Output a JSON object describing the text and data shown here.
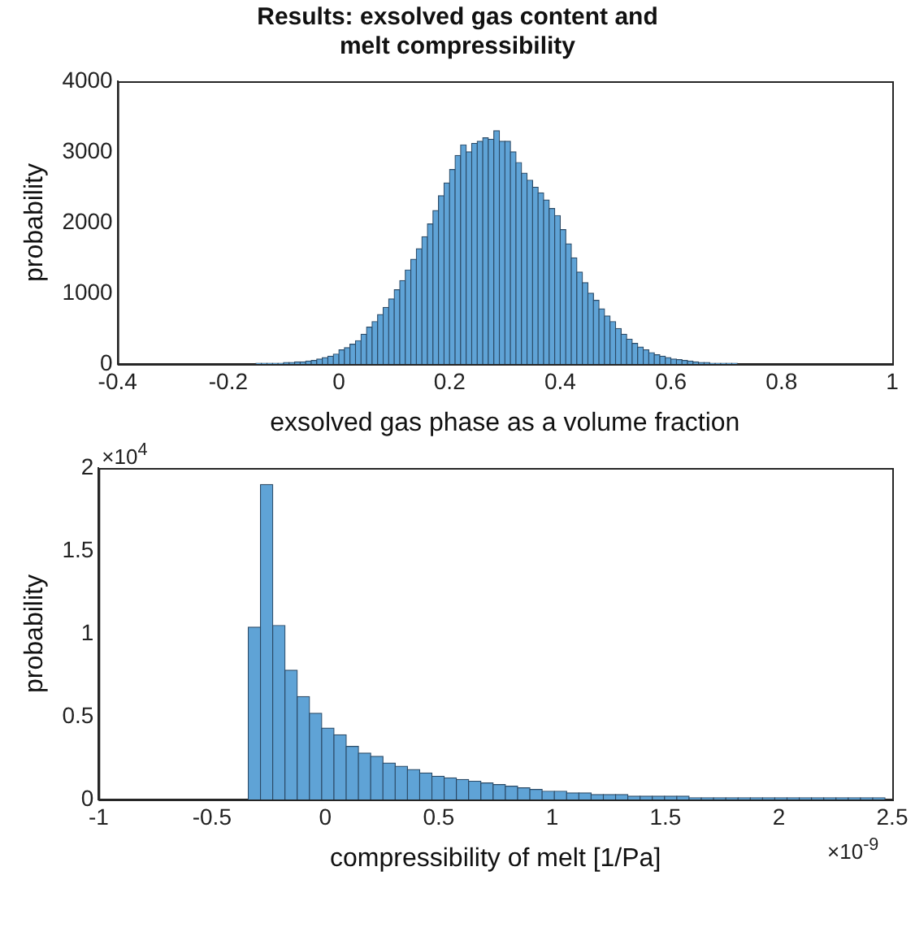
{
  "chart_data": [
    {
      "type": "histogram",
      "title": "Results: exsolved gas content and melt compressibility",
      "xlabel": "exsolved gas phase as a volume fraction",
      "ylabel": "probability",
      "color": "#5fa3d6",
      "bins": [
        -0.15,
        -0.14,
        -0.13,
        -0.12,
        -0.11,
        -0.1,
        -0.09,
        -0.08,
        -0.07,
        -0.06,
        -0.05,
        -0.04,
        -0.03,
        -0.02,
        -0.01,
        0,
        0.01,
        0.02,
        0.03,
        0.04,
        0.05,
        0.06,
        0.07,
        0.08,
        0.09,
        0.1,
        0.11,
        0.12,
        0.13,
        0.14,
        0.15,
        0.16,
        0.17,
        0.18,
        0.19,
        0.2,
        0.21,
        0.22,
        0.23,
        0.24,
        0.25,
        0.26,
        0.27,
        0.28,
        0.29,
        0.3,
        0.31,
        0.32,
        0.33,
        0.34,
        0.35,
        0.36,
        0.37,
        0.38,
        0.39,
        0.4,
        0.41,
        0.42,
        0.43,
        0.44,
        0.45,
        0.46,
        0.47,
        0.48,
        0.49,
        0.5,
        0.51,
        0.52,
        0.53,
        0.54,
        0.55,
        0.56,
        0.57,
        0.58,
        0.59,
        0.6,
        0.61,
        0.62,
        0.63,
        0.64,
        0.65,
        0.66,
        0.67,
        0.68,
        0.69,
        0.7,
        0.71,
        0.72,
        0.73,
        0.74,
        0.75
      ],
      "values": [
        10,
        10,
        10,
        10,
        10,
        20,
        20,
        30,
        30,
        40,
        50,
        70,
        90,
        110,
        140,
        200,
        230,
        280,
        330,
        420,
        520,
        600,
        700,
        800,
        920,
        1050,
        1180,
        1330,
        1480,
        1630,
        1800,
        1980,
        2170,
        2380,
        2560,
        2750,
        2950,
        3100,
        3000,
        3120,
        3150,
        3200,
        3180,
        3300,
        3150,
        3150,
        3000,
        2850,
        2700,
        2600,
        2500,
        2420,
        2320,
        2200,
        2100,
        1900,
        1700,
        1500,
        1300,
        1150,
        1000,
        900,
        780,
        680,
        600,
        500,
        420,
        350,
        290,
        240,
        200,
        160,
        130,
        110,
        90,
        70,
        60,
        50,
        40,
        30,
        20,
        20,
        10,
        10,
        10,
        10,
        10,
        0,
        0,
        0
      ],
      "xlim": [
        -0.4,
        1
      ],
      "xticks": [
        -0.4,
        -0.2,
        0,
        0.2,
        0.4,
        0.6,
        0.8,
        1
      ],
      "ylim": [
        0,
        4000
      ],
      "yticks": [
        0,
        1000,
        2000,
        3000,
        4000
      ]
    },
    {
      "type": "histogram",
      "xlabel": "compressibility of melt [1/Pa]",
      "ylabel": "probability",
      "color": "#5fa3d6",
      "annotations": [
        "×10$^{4}$",
        "×10$^{-9}$"
      ],
      "bins": [
        -0.34,
        -0.286,
        -0.232,
        -0.178,
        -0.124,
        -0.07,
        -0.016,
        0.038,
        0.092,
        0.146,
        0.2,
        0.254,
        0.308,
        0.362,
        0.416,
        0.47,
        0.524,
        0.578,
        0.632,
        0.686,
        0.74,
        0.794,
        0.848,
        0.902,
        0.956,
        1.01,
        1.064,
        1.118,
        1.172,
        1.226,
        1.28,
        1.334,
        1.388,
        1.442,
        1.496,
        1.55,
        1.604,
        1.658,
        1.712,
        1.766,
        1.82,
        1.874,
        1.928,
        1.982,
        2.036,
        2.09,
        2.144,
        2.198,
        2.252,
        2.306,
        2.36,
        2.414,
        2.468
      ],
      "values": [
        1.04,
        1.9,
        1.05,
        0.78,
        0.62,
        0.52,
        0.43,
        0.39,
        0.32,
        0.28,
        0.26,
        0.22,
        0.2,
        0.18,
        0.16,
        0.14,
        0.13,
        0.12,
        0.11,
        0.1,
        0.09,
        0.08,
        0.07,
        0.06,
        0.05,
        0.05,
        0.04,
        0.04,
        0.03,
        0.03,
        0.03,
        0.02,
        0.02,
        0.02,
        0.02,
        0.02,
        0.01,
        0.01,
        0.01,
        0.01,
        0.01,
        0.01,
        0.01,
        0.01,
        0.01,
        0.01,
        0.01,
        0.01,
        0.01,
        0.01,
        0.01,
        0.01
      ],
      "xlim": [
        -1,
        2.5
      ],
      "xticks": [
        -1,
        -0.5,
        0,
        0.5,
        1,
        1.5,
        2,
        2.5
      ],
      "ylim": [
        0,
        2
      ],
      "yticks": [
        0,
        0.5,
        1,
        1.5,
        2
      ]
    }
  ]
}
